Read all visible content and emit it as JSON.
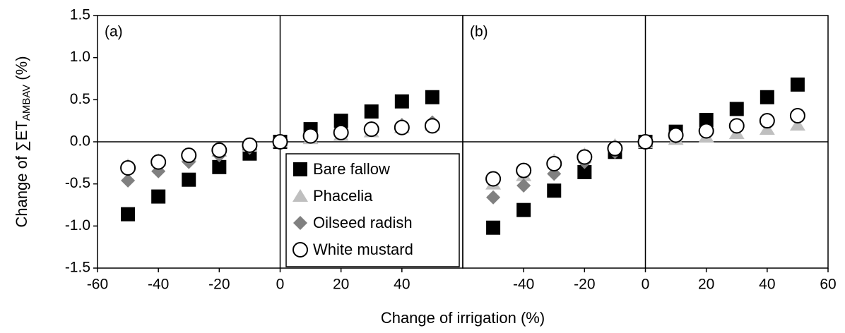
{
  "chart_data": [
    {
      "type": "scatter",
      "label": "(a)",
      "y_label": {
        "main": "Change of ∑ET",
        "sub": "AMBAV",
        "suffix": "(%)"
      },
      "x_label": "Change of irrigation (%)",
      "xlim": [
        -60,
        60
      ],
      "xticks": [
        -60,
        -40,
        -20,
        0,
        20,
        40
      ],
      "ylim": [
        -1.5,
        1.5
      ],
      "yticks": [
        1.5,
        {
          "value": 1,
          "label": "1.0"
        },
        0.5,
        {
          "value": 0,
          "label": "0.0"
        },
        -0.5,
        {
          "value": -1,
          "label": "-1.0"
        },
        -1.5
      ],
      "legend": "lower right",
      "x": [
        -50,
        -40,
        -30,
        -20,
        -10,
        0,
        10,
        20,
        30,
        40,
        50
      ],
      "series": [
        {
          "name": "Bare fallow",
          "color": "#000000",
          "marker": "square",
          "values": [
            -0.86,
            -0.65,
            -0.45,
            -0.3,
            -0.14,
            0,
            0.15,
            0.25,
            0.36,
            0.48,
            0.53
          ]
        },
        {
          "name": "Phacelia",
          "color": "#bfbfbf",
          "marker": "triangle",
          "values": [
            -0.28,
            -0.22,
            -0.17,
            -0.11,
            -0.05,
            0,
            0.04,
            0.08,
            0.12,
            0.17,
            0.2
          ]
        },
        {
          "name": "Oilseed radish",
          "color": "#808080",
          "marker": "diamond",
          "values": [
            -0.46,
            -0.35,
            -0.24,
            -0.16,
            -0.07,
            0,
            0.07,
            0.12,
            0.16,
            0.2,
            0.23
          ]
        },
        {
          "name": "White mustard",
          "color": "#ffffff",
          "marker": "circle",
          "values": [
            -0.31,
            -0.24,
            -0.16,
            -0.1,
            -0.04,
            0,
            0.07,
            0.11,
            0.15,
            0.17,
            0.19
          ]
        }
      ]
    },
    {
      "type": "scatter",
      "label": "(b)",
      "xlim": [
        -60,
        60
      ],
      "xticks": [
        -40,
        -20,
        0,
        20,
        40,
        60
      ],
      "ylim": [
        -1.5,
        1.5
      ],
      "x": [
        -50,
        -40,
        -30,
        -20,
        -10,
        0,
        10,
        20,
        30,
        40,
        50
      ],
      "series": [
        {
          "color": "#000000",
          "marker": "square",
          "values": [
            -1.02,
            -0.81,
            -0.58,
            -0.36,
            -0.12,
            0,
            0.12,
            0.26,
            0.39,
            0.53,
            0.68
          ]
        },
        {
          "color": "#bfbfbf",
          "marker": "triangle",
          "values": [
            -0.5,
            -0.4,
            -0.22,
            -0.15,
            -0.04,
            -0.01,
            0.03,
            0.06,
            0.1,
            0.15,
            0.2
          ]
        },
        {
          "color": "#808080",
          "marker": "diamond",
          "values": [
            -0.66,
            -0.52,
            -0.38,
            -0.24,
            -0.12,
            0,
            0.06,
            0.12,
            0.18,
            0.24,
            0.3
          ]
        },
        {
          "color": "#ffffff",
          "marker": "circle",
          "values": [
            -0.44,
            -0.34,
            -0.26,
            -0.18,
            -0.08,
            0,
            0.08,
            0.13,
            0.19,
            0.25,
            0.31
          ]
        }
      ]
    }
  ]
}
